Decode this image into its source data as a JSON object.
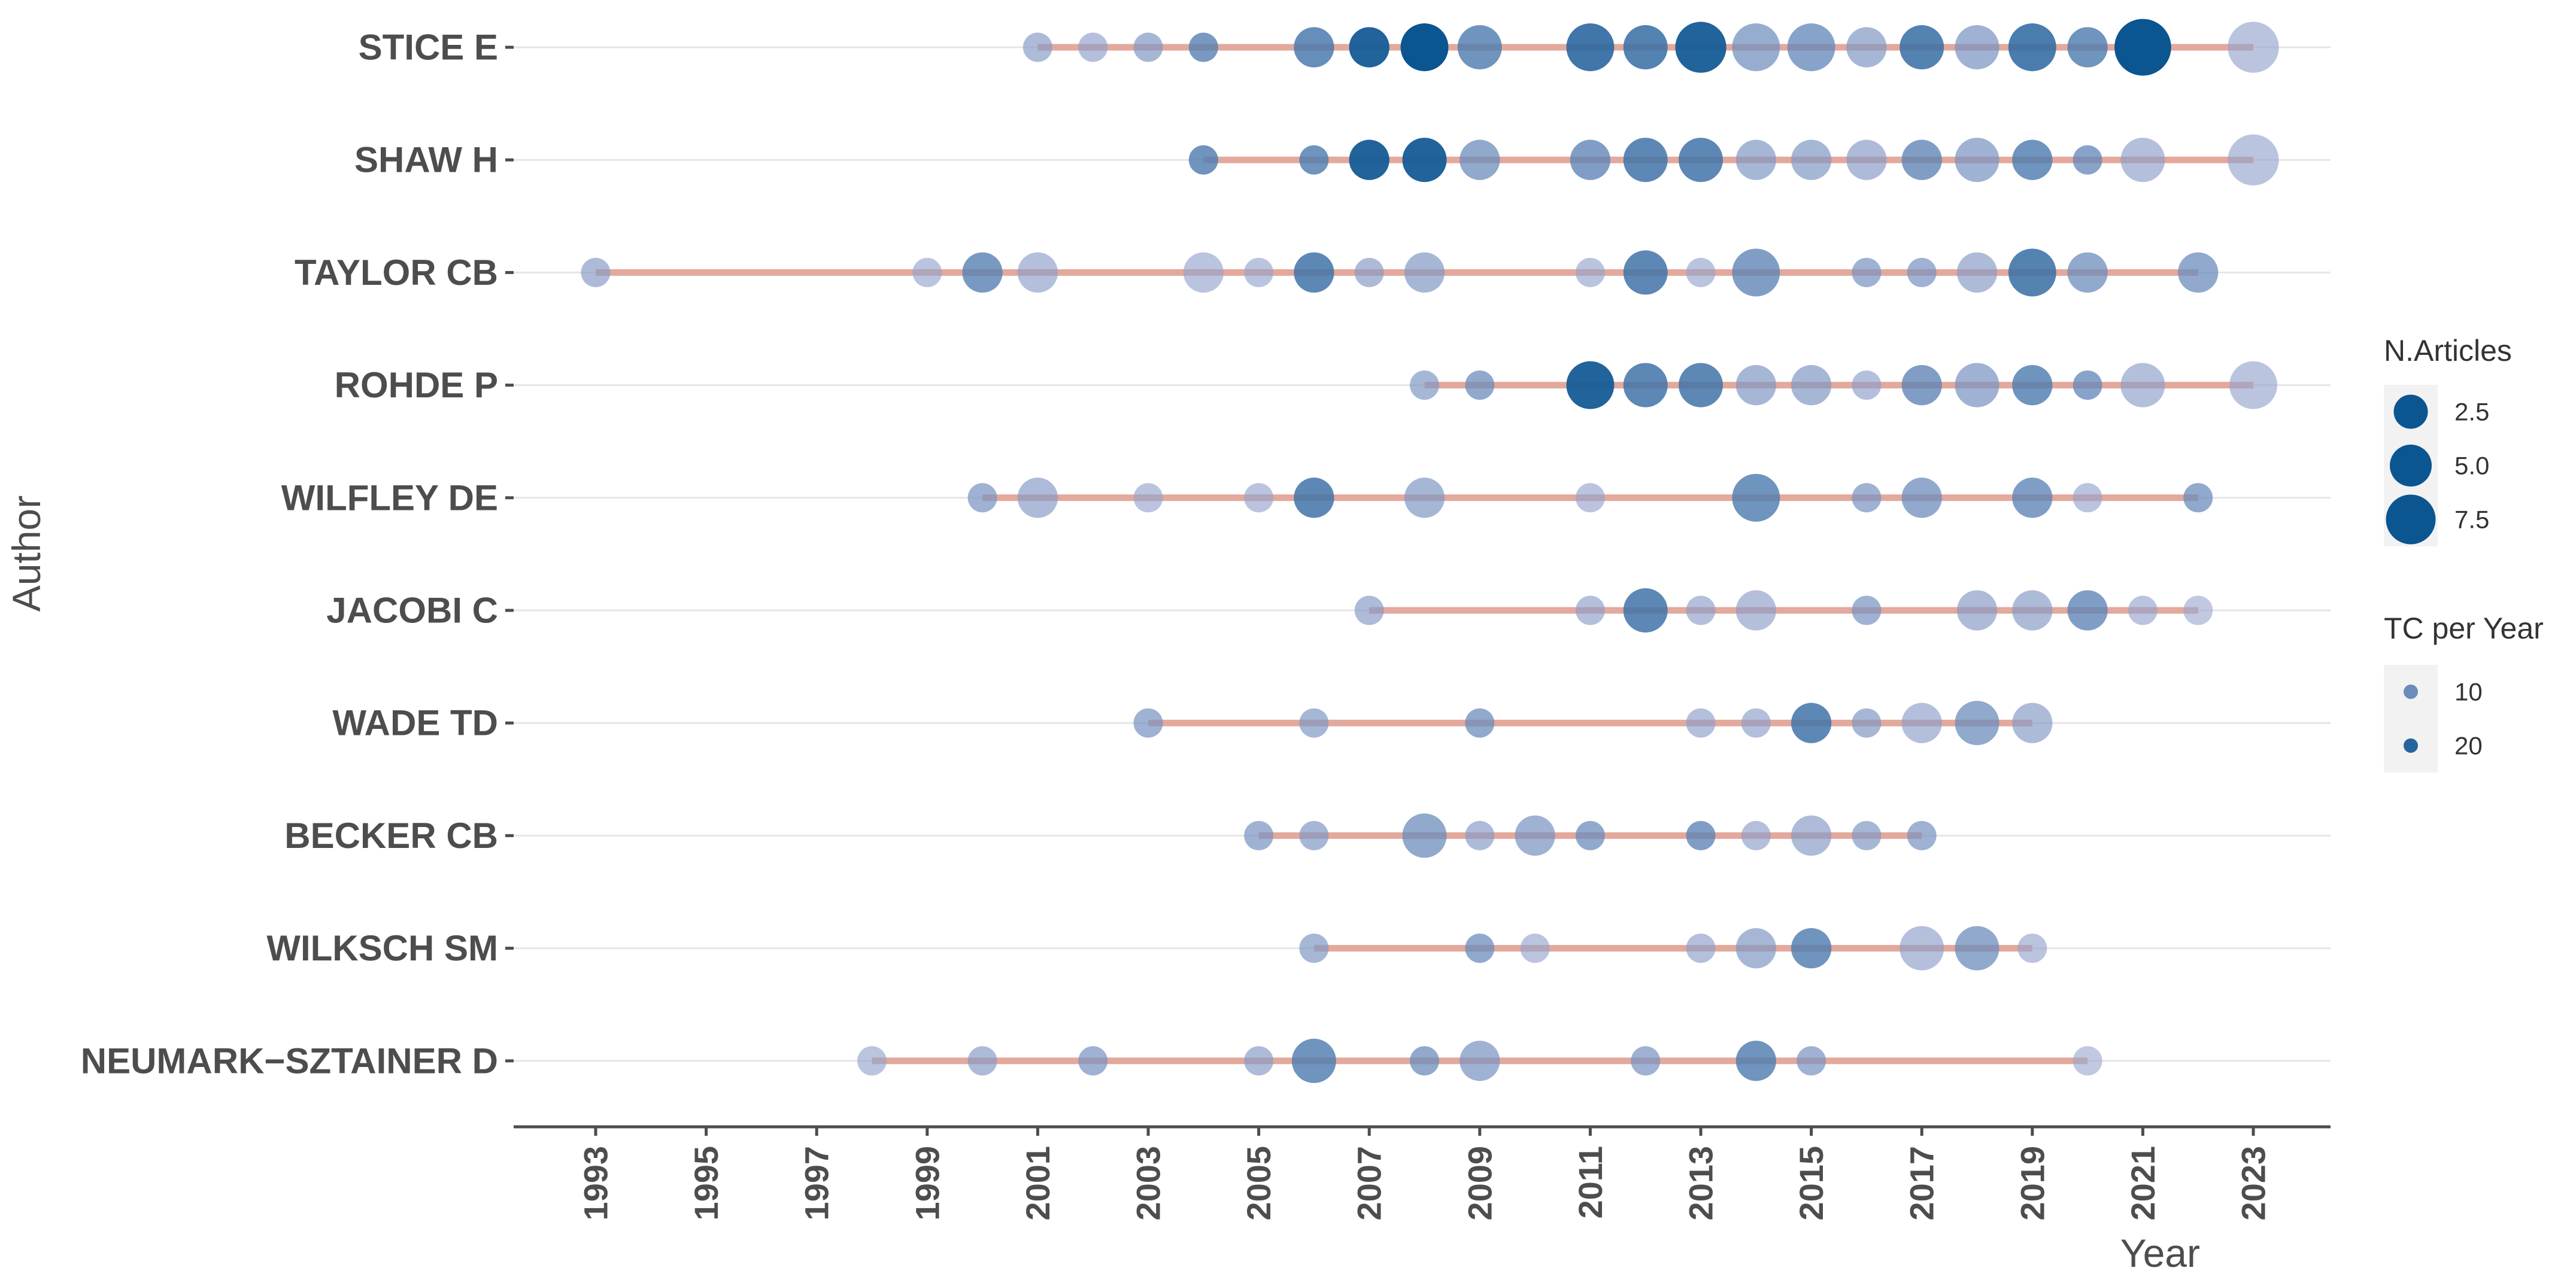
{
  "chart_data": {
    "type": "scatter",
    "xlabel": "Year",
    "ylabel": "Author",
    "xlim": [
      1991.5,
      2024.4
    ],
    "x_ticks": [
      1993,
      1995,
      1997,
      1999,
      2001,
      2003,
      2005,
      2007,
      2009,
      2011,
      2013,
      2015,
      2017,
      2019,
      2021,
      2023
    ],
    "x_tick_labels": [
      "1993",
      "1995",
      "1997",
      "1999",
      "2001",
      "2003",
      "2005",
      "2007",
      "2009",
      "2011",
      "2013",
      "2015",
      "2017",
      "2019",
      "2021",
      "2023"
    ],
    "colors": {
      "line": "#e3a99c",
      "low_tc": "#9aa6d0",
      "high_tc": "#0b5591",
      "grid": "#e6e6e6",
      "axis": "#4d4d4d"
    },
    "legend": {
      "size": {
        "title": "N.Articles",
        "entries": [
          {
            "value": 2.5,
            "label": "2.5"
          },
          {
            "value": 5.0,
            "label": "5.0"
          },
          {
            "value": 7.5,
            "label": "7.5"
          }
        ]
      },
      "color": {
        "title": "TC per Year",
        "entries": [
          {
            "value": 10,
            "label": "10"
          },
          {
            "value": 20,
            "label": "20"
          }
        ]
      }
    },
    "authors": [
      {
        "name": "STICE E",
        "span": [
          2001,
          2023
        ],
        "points": [
          {
            "year": 2001,
            "n": 1,
            "tc": 6
          },
          {
            "year": 2002,
            "n": 1,
            "tc": 5
          },
          {
            "year": 2003,
            "n": 1,
            "tc": 7
          },
          {
            "year": 2004,
            "n": 1,
            "tc": 13
          },
          {
            "year": 2006,
            "n": 3,
            "tc": 15
          },
          {
            "year": 2007,
            "n": 3,
            "tc": 22
          },
          {
            "year": 2008,
            "n": 5,
            "tc": 24
          },
          {
            "year": 2009,
            "n": 4,
            "tc": 14
          },
          {
            "year": 2011,
            "n": 5,
            "tc": 19
          },
          {
            "year": 2012,
            "n": 4,
            "tc": 17
          },
          {
            "year": 2013,
            "n": 6,
            "tc": 22
          },
          {
            "year": 2014,
            "n": 5,
            "tc": 9
          },
          {
            "year": 2015,
            "n": 5,
            "tc": 11
          },
          {
            "year": 2016,
            "n": 3,
            "tc": 7
          },
          {
            "year": 2017,
            "n": 4,
            "tc": 17
          },
          {
            "year": 2018,
            "n": 4,
            "tc": 8
          },
          {
            "year": 2019,
            "n": 5,
            "tc": 18
          },
          {
            "year": 2020,
            "n": 3,
            "tc": 14
          },
          {
            "year": 2021,
            "n": 8,
            "tc": 24
          },
          {
            "year": 2023,
            "n": 6,
            "tc": 4
          }
        ]
      },
      {
        "name": "SHAW H",
        "span": [
          2004,
          2023
        ],
        "points": [
          {
            "year": 2004,
            "n": 1,
            "tc": 14
          },
          {
            "year": 2006,
            "n": 1,
            "tc": 14
          },
          {
            "year": 2007,
            "n": 3,
            "tc": 22
          },
          {
            "year": 2008,
            "n": 4,
            "tc": 22
          },
          {
            "year": 2009,
            "n": 3,
            "tc": 10
          },
          {
            "year": 2011,
            "n": 3,
            "tc": 12
          },
          {
            "year": 2012,
            "n": 4,
            "tc": 16
          },
          {
            "year": 2013,
            "n": 4,
            "tc": 16
          },
          {
            "year": 2014,
            "n": 3,
            "tc": 7
          },
          {
            "year": 2015,
            "n": 3,
            "tc": 7
          },
          {
            "year": 2016,
            "n": 3,
            "tc": 6
          },
          {
            "year": 2017,
            "n": 3,
            "tc": 12
          },
          {
            "year": 2018,
            "n": 4,
            "tc": 8
          },
          {
            "year": 2019,
            "n": 3,
            "tc": 14
          },
          {
            "year": 2020,
            "n": 1,
            "tc": 11
          },
          {
            "year": 2021,
            "n": 4,
            "tc": 5
          },
          {
            "year": 2023,
            "n": 6,
            "tc": 4
          }
        ]
      },
      {
        "name": "TAYLOR CB",
        "span": [
          1993,
          2022
        ],
        "points": [
          {
            "year": 1993,
            "n": 1,
            "tc": 6
          },
          {
            "year": 1999,
            "n": 1,
            "tc": 4
          },
          {
            "year": 2000,
            "n": 3,
            "tc": 13
          },
          {
            "year": 2001,
            "n": 3,
            "tc": 5
          },
          {
            "year": 2004,
            "n": 3,
            "tc": 4
          },
          {
            "year": 2005,
            "n": 1,
            "tc": 4
          },
          {
            "year": 2006,
            "n": 3,
            "tc": 16
          },
          {
            "year": 2007,
            "n": 1,
            "tc": 6
          },
          {
            "year": 2008,
            "n": 3,
            "tc": 7
          },
          {
            "year": 2011,
            "n": 1,
            "tc": 4
          },
          {
            "year": 2012,
            "n": 4,
            "tc": 16
          },
          {
            "year": 2013,
            "n": 1,
            "tc": 4
          },
          {
            "year": 2014,
            "n": 5,
            "tc": 12
          },
          {
            "year": 2016,
            "n": 1,
            "tc": 8
          },
          {
            "year": 2017,
            "n": 1,
            "tc": 8
          },
          {
            "year": 2018,
            "n": 3,
            "tc": 6
          },
          {
            "year": 2019,
            "n": 5,
            "tc": 17
          },
          {
            "year": 2020,
            "n": 3,
            "tc": 10
          },
          {
            "year": 2022,
            "n": 3,
            "tc": 10
          }
        ]
      },
      {
        "name": "ROHDE P",
        "span": [
          2008,
          2023
        ],
        "points": [
          {
            "year": 2008,
            "n": 1,
            "tc": 7
          },
          {
            "year": 2009,
            "n": 1,
            "tc": 10
          },
          {
            "year": 2011,
            "n": 5,
            "tc": 22
          },
          {
            "year": 2012,
            "n": 4,
            "tc": 16
          },
          {
            "year": 2013,
            "n": 4,
            "tc": 16
          },
          {
            "year": 2014,
            "n": 3,
            "tc": 7
          },
          {
            "year": 2015,
            "n": 3,
            "tc": 7
          },
          {
            "year": 2016,
            "n": 1,
            "tc": 5
          },
          {
            "year": 2017,
            "n": 3,
            "tc": 12
          },
          {
            "year": 2018,
            "n": 4,
            "tc": 8
          },
          {
            "year": 2019,
            "n": 3,
            "tc": 14
          },
          {
            "year": 2020,
            "n": 1,
            "tc": 11
          },
          {
            "year": 2021,
            "n": 4,
            "tc": 5
          },
          {
            "year": 2023,
            "n": 5,
            "tc": 4
          }
        ]
      },
      {
        "name": "WILFLEY DE",
        "span": [
          2000,
          2022
        ],
        "points": [
          {
            "year": 2000,
            "n": 1,
            "tc": 8
          },
          {
            "year": 2001,
            "n": 3,
            "tc": 6
          },
          {
            "year": 2003,
            "n": 1,
            "tc": 4
          },
          {
            "year": 2005,
            "n": 1,
            "tc": 4
          },
          {
            "year": 2006,
            "n": 3,
            "tc": 16
          },
          {
            "year": 2008,
            "n": 3,
            "tc": 7
          },
          {
            "year": 2011,
            "n": 1,
            "tc": 4
          },
          {
            "year": 2014,
            "n": 5,
            "tc": 14
          },
          {
            "year": 2016,
            "n": 1,
            "tc": 8
          },
          {
            "year": 2017,
            "n": 3,
            "tc": 10
          },
          {
            "year": 2019,
            "n": 3,
            "tc": 12
          },
          {
            "year": 2020,
            "n": 1,
            "tc": 4
          },
          {
            "year": 2022,
            "n": 1,
            "tc": 10
          }
        ]
      },
      {
        "name": "JACOBI C",
        "span": [
          2007,
          2022
        ],
        "points": [
          {
            "year": 2007,
            "n": 1,
            "tc": 6
          },
          {
            "year": 2011,
            "n": 1,
            "tc": 5
          },
          {
            "year": 2012,
            "n": 4,
            "tc": 16
          },
          {
            "year": 2013,
            "n": 1,
            "tc": 5
          },
          {
            "year": 2014,
            "n": 3,
            "tc": 5
          },
          {
            "year": 2016,
            "n": 1,
            "tc": 8
          },
          {
            "year": 2018,
            "n": 3,
            "tc": 6
          },
          {
            "year": 2019,
            "n": 3,
            "tc": 6
          },
          {
            "year": 2020,
            "n": 3,
            "tc": 12
          },
          {
            "year": 2021,
            "n": 1,
            "tc": 4
          },
          {
            "year": 2022,
            "n": 1,
            "tc": 3
          }
        ]
      },
      {
        "name": "WADE TD",
        "span": [
          2003,
          2019
        ],
        "points": [
          {
            "year": 2003,
            "n": 1,
            "tc": 8
          },
          {
            "year": 2006,
            "n": 1,
            "tc": 7
          },
          {
            "year": 2009,
            "n": 1,
            "tc": 10
          },
          {
            "year": 2013,
            "n": 1,
            "tc": 5
          },
          {
            "year": 2014,
            "n": 1,
            "tc": 5
          },
          {
            "year": 2015,
            "n": 3,
            "tc": 16
          },
          {
            "year": 2016,
            "n": 1,
            "tc": 7
          },
          {
            "year": 2017,
            "n": 3,
            "tc": 5
          },
          {
            "year": 2018,
            "n": 4,
            "tc": 10
          },
          {
            "year": 2019,
            "n": 3,
            "tc": 6
          }
        ]
      },
      {
        "name": "BECKER CB",
        "span": [
          2005,
          2017
        ],
        "points": [
          {
            "year": 2005,
            "n": 1,
            "tc": 8
          },
          {
            "year": 2006,
            "n": 1,
            "tc": 7
          },
          {
            "year": 2008,
            "n": 4,
            "tc": 10
          },
          {
            "year": 2009,
            "n": 1,
            "tc": 6
          },
          {
            "year": 2010,
            "n": 3,
            "tc": 8
          },
          {
            "year": 2011,
            "n": 1,
            "tc": 10
          },
          {
            "year": 2013,
            "n": 1,
            "tc": 12
          },
          {
            "year": 2014,
            "n": 1,
            "tc": 5
          },
          {
            "year": 2015,
            "n": 3,
            "tc": 6
          },
          {
            "year": 2016,
            "n": 1,
            "tc": 7
          },
          {
            "year": 2017,
            "n": 1,
            "tc": 8
          }
        ]
      },
      {
        "name": "WILKSCH SM",
        "span": [
          2006,
          2019
        ],
        "points": [
          {
            "year": 2006,
            "n": 1,
            "tc": 7
          },
          {
            "year": 2009,
            "n": 1,
            "tc": 10
          },
          {
            "year": 2010,
            "n": 1,
            "tc": 4
          },
          {
            "year": 2013,
            "n": 1,
            "tc": 5
          },
          {
            "year": 2014,
            "n": 3,
            "tc": 7
          },
          {
            "year": 2015,
            "n": 3,
            "tc": 14
          },
          {
            "year": 2017,
            "n": 4,
            "tc": 5
          },
          {
            "year": 2018,
            "n": 4,
            "tc": 10
          },
          {
            "year": 2019,
            "n": 1,
            "tc": 4
          }
        ]
      },
      {
        "name": "NEUMARK−SZTAINER D",
        "span": [
          1998,
          2020
        ],
        "points": [
          {
            "year": 1998,
            "n": 1,
            "tc": 4
          },
          {
            "year": 2000,
            "n": 1,
            "tc": 6
          },
          {
            "year": 2002,
            "n": 1,
            "tc": 8
          },
          {
            "year": 2005,
            "n": 1,
            "tc": 6
          },
          {
            "year": 2006,
            "n": 4,
            "tc": 14
          },
          {
            "year": 2008,
            "n": 1,
            "tc": 10
          },
          {
            "year": 2009,
            "n": 3,
            "tc": 8
          },
          {
            "year": 2012,
            "n": 1,
            "tc": 8
          },
          {
            "year": 2014,
            "n": 3,
            "tc": 14
          },
          {
            "year": 2015,
            "n": 1,
            "tc": 8
          },
          {
            "year": 2020,
            "n": 1,
            "tc": 3
          }
        ]
      }
    ]
  }
}
